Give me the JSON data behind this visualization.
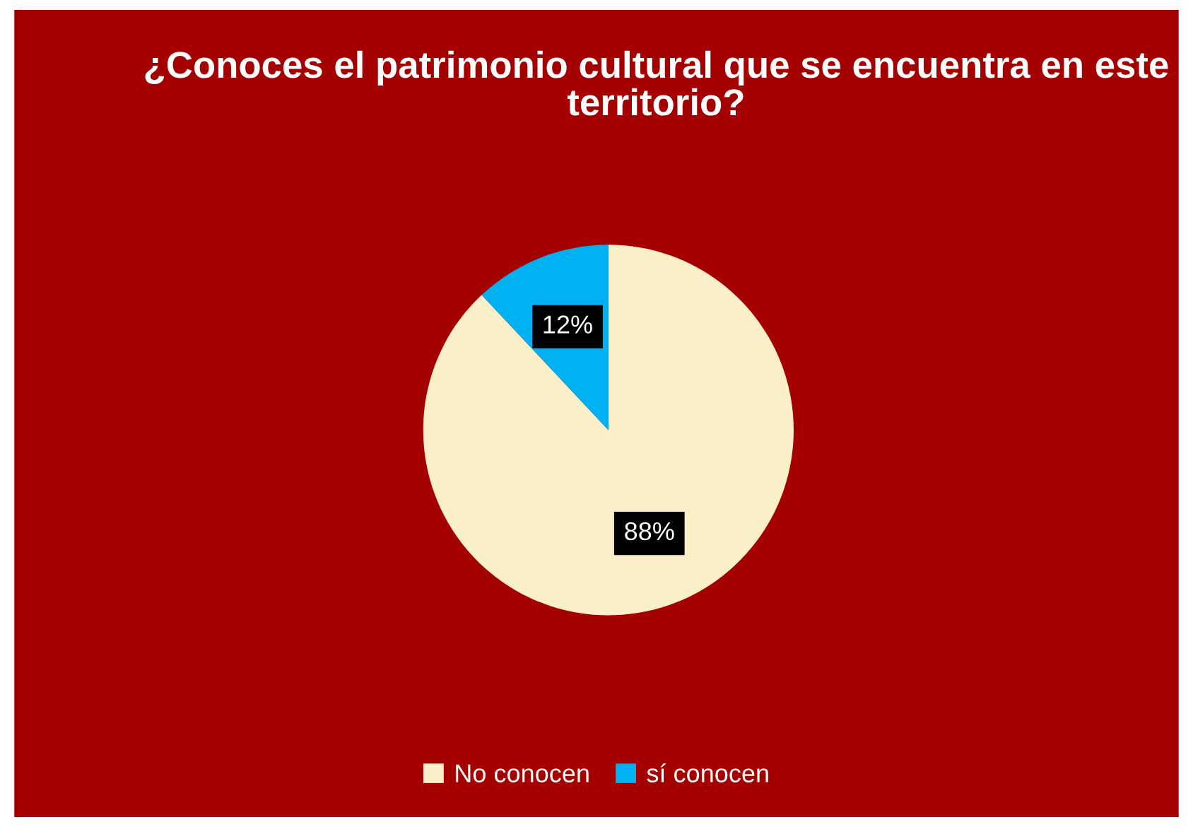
{
  "chart_data": {
    "type": "pie",
    "title": "¿Conoces el patrimonio cultural que se encuentra en este territorio?",
    "categories": [
      "No conocen",
      "sí conocen"
    ],
    "values": [
      88,
      12
    ],
    "colors": [
      "#faefc8",
      "#00b0f0"
    ],
    "value_labels": [
      "88%",
      "12%"
    ],
    "legend": "bottom"
  }
}
